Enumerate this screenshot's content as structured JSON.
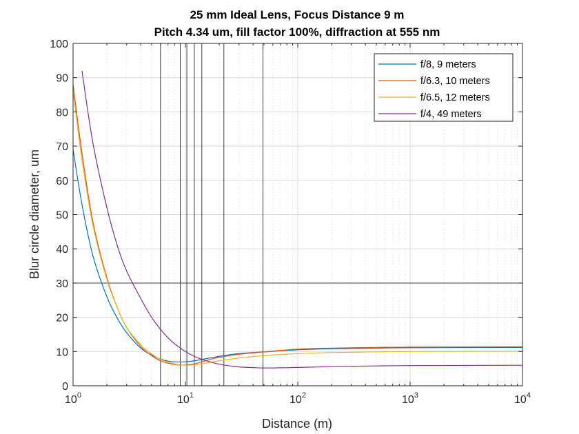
{
  "chart_data": {
    "type": "line",
    "title": "25 mm Ideal Lens, Focus Distance 9 m",
    "subtitle": "Pitch 4.34 um, fill factor 100%, diffraction at 555 nm",
    "xlabel": "Distance (m)",
    "ylabel": "Blur circle diameter, um",
    "xscale": "log",
    "xlim": [
      1,
      10000
    ],
    "ylim": [
      0,
      100
    ],
    "x_ticks": [
      {
        "base": "10",
        "exp": "0"
      },
      {
        "base": "10",
        "exp": "1"
      },
      {
        "base": "10",
        "exp": "2"
      },
      {
        "base": "10",
        "exp": "3"
      },
      {
        "base": "10",
        "exp": "4"
      }
    ],
    "y_ticks": [
      "0",
      "10",
      "20",
      "30",
      "40",
      "50",
      "60",
      "70",
      "80",
      "90",
      "100"
    ],
    "grid": true,
    "legend_position": "top-right",
    "reference_lines": {
      "horizontal": [
        30
      ],
      "vertical": [
        6,
        9,
        10.3,
        12,
        14,
        22,
        49
      ]
    },
    "series": [
      {
        "name": "f/8, 9 meters",
        "color": "#0072BD",
        "x": [
          1,
          1.2,
          1.5,
          2,
          2.5,
          3,
          4,
          5,
          6,
          7,
          8,
          9,
          10,
          12,
          14,
          17,
          20,
          30,
          50,
          100,
          200,
          500,
          1000,
          10000
        ],
        "y": [
          69,
          53,
          38,
          26,
          19.5,
          15.5,
          11,
          9,
          7.8,
          7.2,
          7.0,
          6.95,
          7.0,
          7.3,
          7.7,
          8.2,
          8.6,
          9.4,
          9.9,
          10.5,
          10.8,
          11.0,
          11.1,
          11.2
        ]
      },
      {
        "name": "f/6.3, 10 meters",
        "color": "#D95319",
        "x": [
          1,
          1.2,
          1.5,
          2,
          2.5,
          3,
          4,
          5,
          6,
          7,
          8,
          9,
          10,
          12,
          14,
          17,
          20,
          30,
          50,
          100,
          200,
          500,
          1000,
          10000
        ],
        "y": [
          88,
          68,
          48,
          31.5,
          22.5,
          17,
          11.5,
          8.8,
          7.3,
          6.6,
          6.2,
          6.05,
          6.1,
          6.4,
          7.0,
          7.8,
          8.3,
          9.2,
          9.9,
          10.7,
          11.0,
          11.2,
          11.3,
          11.4
        ]
      },
      {
        "name": "f/6.5, 12 meters",
        "color": "#EDB120",
        "x": [
          1,
          1.2,
          1.5,
          2,
          2.5,
          3,
          4,
          5,
          6,
          7,
          8,
          9,
          10,
          12,
          14,
          17,
          20,
          30,
          50,
          100,
          200,
          500,
          1000,
          10000
        ],
        "y": [
          86,
          66,
          47,
          31,
          22.5,
          17,
          12,
          9.3,
          7.7,
          6.9,
          6.4,
          6.1,
          6.0,
          6.1,
          6.4,
          6.9,
          7.3,
          8.1,
          8.8,
          9.4,
          9.7,
          9.9,
          10.0,
          10.1
        ]
      },
      {
        "name": "f/4, 49 meters",
        "color": "#7E2F8E",
        "x": [
          1.2,
          1.5,
          2,
          2.5,
          3,
          4,
          5,
          6,
          7,
          8,
          10,
          12,
          14,
          17,
          20,
          25,
          30,
          40,
          50,
          70,
          100,
          200,
          500,
          1000,
          10000
        ],
        "y": [
          92,
          71,
          52,
          40.5,
          33.5,
          25.5,
          20,
          16.5,
          14,
          12.3,
          10,
          8.6,
          7.7,
          6.9,
          6.3,
          5.8,
          5.5,
          5.3,
          5.2,
          5.25,
          5.35,
          5.6,
          5.8,
          5.9,
          6.0
        ]
      }
    ]
  }
}
